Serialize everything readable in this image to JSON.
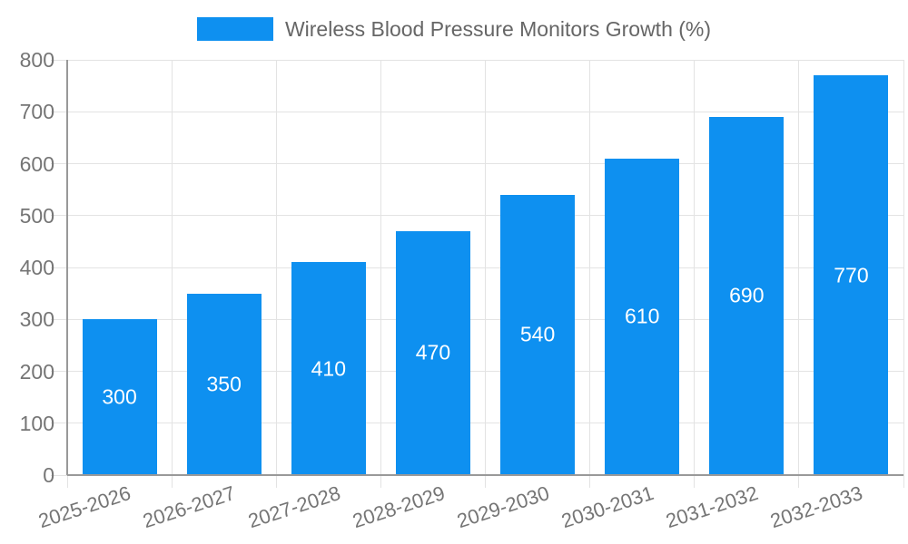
{
  "chart_data": {
    "type": "bar",
    "title": "Wireless Blood Pressure Monitors Growth (%)",
    "categories": [
      "2025-2026",
      "2026-2027",
      "2027-2028",
      "2028-2029",
      "2029-2030",
      "2030-2031",
      "2031-2032",
      "2032-2033"
    ],
    "values": [
      300,
      350,
      410,
      470,
      540,
      610,
      690,
      770
    ],
    "value_labels": [
      "300",
      "350",
      "410",
      "470",
      "540",
      "610",
      "690",
      "770"
    ],
    "xlabel": "",
    "ylabel": "",
    "ylim": [
      0,
      800
    ],
    "ytick_step": 100,
    "yticks": [
      0,
      100,
      200,
      300,
      400,
      500,
      600,
      700,
      800
    ],
    "grid": true,
    "legend_position": "top-center",
    "x_label_rotation_deg": -18,
    "colors": {
      "bar": "#0E90F0",
      "value_label": "#ffffff",
      "axis_text": "#757575",
      "title_text": "#666666",
      "gridline": "#e3e3e3",
      "axis_line": "#999999",
      "background": "#ffffff"
    }
  }
}
